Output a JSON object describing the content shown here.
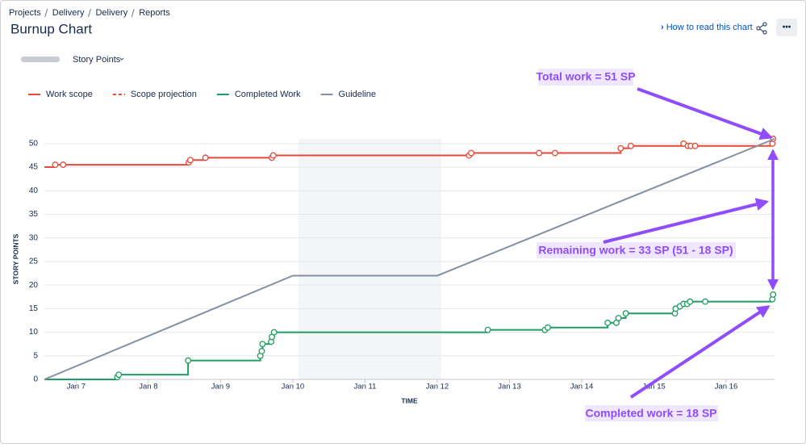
{
  "breadcrumbs": [
    "Projects",
    "Delivery",
    "Delivery",
    "Reports"
  ],
  "header": {
    "title": "Burnup Chart",
    "help_link": "How to read this chart",
    "menu_button": "•••"
  },
  "controls": {
    "estimation": "Story Points"
  },
  "chart_data": {
    "type": "step-line",
    "ylabel": "STORY POINTS",
    "xlabel": "TIME",
    "xlim": [
      6.56,
      16.67
    ],
    "ylim": [
      0,
      51
    ],
    "xticks": [
      {
        "value": 7,
        "label": "Jan 7"
      },
      {
        "value": 8,
        "label": "Jan 8"
      },
      {
        "value": 9,
        "label": "Jan 9"
      },
      {
        "value": 10,
        "label": "Jan 10"
      },
      {
        "value": 11,
        "label": "Jan 11"
      },
      {
        "value": 12,
        "label": "Jan 12"
      },
      {
        "value": 13,
        "label": "Jan 13"
      },
      {
        "value": 14,
        "label": "Jan 14"
      },
      {
        "value": 15,
        "label": "Jan 15"
      },
      {
        "value": 16,
        "label": "Jan 16"
      }
    ],
    "yticks": [
      0,
      5,
      10,
      15,
      20,
      25,
      30,
      35,
      40,
      45,
      50
    ],
    "grid": true,
    "series": [
      {
        "name": "Work scope",
        "color": "#e5493a",
        "style": "step",
        "x": [
          6.56,
          6.71,
          6.82,
          8.56,
          8.58,
          8.79,
          9.71,
          9.73,
          12.44,
          12.47,
          13.41,
          13.63,
          14.54,
          14.68,
          15.41,
          15.47,
          15.51,
          15.57,
          16.64,
          16.65
        ],
        "values": [
          45,
          45.5,
          45.5,
          46,
          46.5,
          47,
          47,
          47.5,
          47.5,
          48,
          48,
          48,
          49,
          49.5,
          50,
          49.5,
          49.5,
          49.5,
          50,
          51
        ]
      },
      {
        "name": "Scope projection",
        "color": "#e5493a",
        "style": "dashed",
        "x": [],
        "values": []
      },
      {
        "name": "Completed Work",
        "color": "#1f9d63",
        "style": "step",
        "x": [
          6.56,
          7.57,
          7.59,
          8.55,
          9.55,
          9.57,
          9.58,
          9.7,
          9.71,
          9.74,
          12.7,
          13.49,
          13.53,
          14.36,
          14.48,
          14.51,
          14.61,
          15.29,
          15.3,
          15.36,
          15.41,
          15.46,
          15.5,
          15.71,
          16.64,
          16.65
        ],
        "values": [
          0,
          0.5,
          1,
          4,
          5,
          6,
          7.5,
          8,
          9,
          10,
          10.5,
          10.5,
          11,
          12,
          12,
          13,
          14,
          14,
          15,
          15.5,
          16,
          16,
          16.5,
          16.5,
          17,
          18
        ]
      },
      {
        "name": "Guideline",
        "color": "#8590a2",
        "style": "line",
        "x": [
          6.56,
          10,
          12,
          16.67
        ],
        "values": [
          0,
          22,
          22,
          51
        ]
      }
    ],
    "annotations": [
      "Total work = 51 SP",
      "Remaining work = 33 SP (51 - 18 SP)",
      "Completed work = 18 SP"
    ]
  }
}
